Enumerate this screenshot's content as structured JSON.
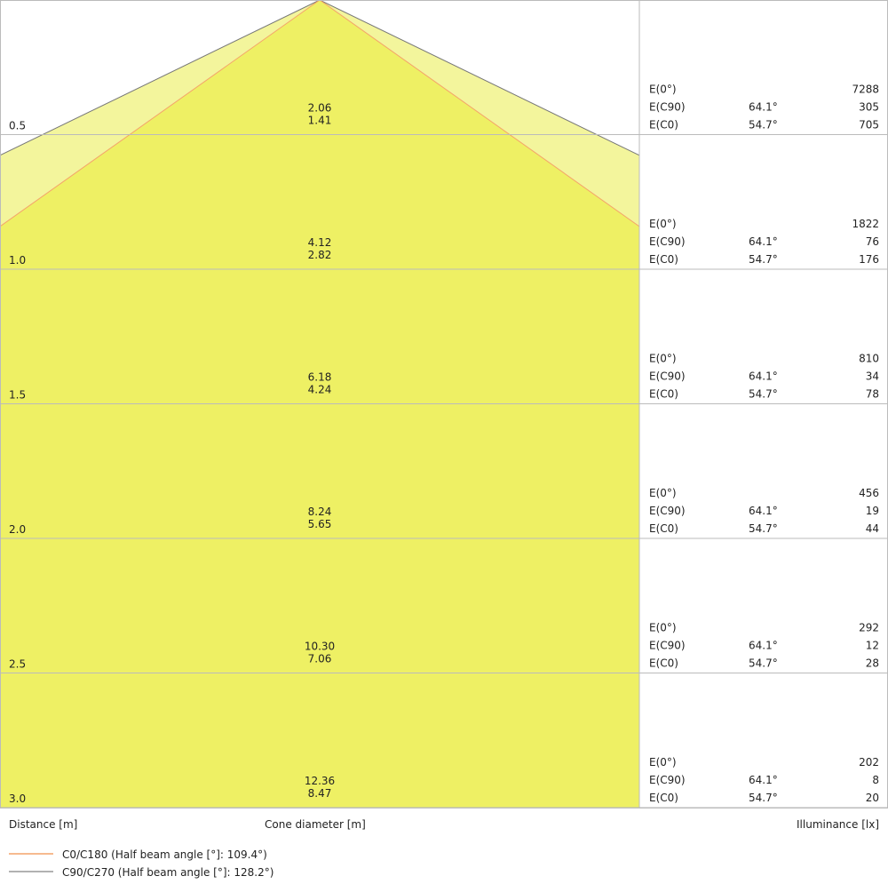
{
  "chart_data": {
    "type": "cone-diagram",
    "colors": {
      "outer_fill": "#f3f59c",
      "inner_fill": "#eef064",
      "c0_line": "#f4a46a",
      "c90_line": "#777777",
      "grid": "#bbbbbb"
    },
    "distance_max": 3.0,
    "rows": [
      {
        "distance": "0.5",
        "cone_c90": "2.06",
        "cone_c0": "1.41",
        "e0": "7288",
        "ec90_angle": "64.1°",
        "ec90": "305",
        "ec0_angle": "54.7°",
        "ec0": "705"
      },
      {
        "distance": "1.0",
        "cone_c90": "4.12",
        "cone_c0": "2.82",
        "e0": "1822",
        "ec90_angle": "64.1°",
        "ec90": "76",
        "ec0_angle": "54.7°",
        "ec0": "176"
      },
      {
        "distance": "1.5",
        "cone_c90": "6.18",
        "cone_c0": "4.24",
        "e0": "810",
        "ec90_angle": "64.1°",
        "ec90": "34",
        "ec0_angle": "54.7°",
        "ec0": "78"
      },
      {
        "distance": "2.0",
        "cone_c90": "8.24",
        "cone_c0": "5.65",
        "e0": "456",
        "ec90_angle": "64.1°",
        "ec90": "19",
        "ec0_angle": "54.7°",
        "ec0": "44"
      },
      {
        "distance": "2.5",
        "cone_c90": "10.30",
        "cone_c0": "7.06",
        "e0": "292",
        "ec90_angle": "64.1°",
        "ec90": "12",
        "ec0_angle": "54.7°",
        "ec0": "28"
      },
      {
        "distance": "3.0",
        "cone_c90": "12.36",
        "cone_c0": "8.47",
        "e0": "202",
        "ec90_angle": "64.1°",
        "ec90": "8",
        "ec0_angle": "54.7°",
        "ec0": "20"
      }
    ],
    "labels": {
      "e0": "E(0°)",
      "ec90": "E(C90)",
      "ec0": "E(C0)"
    },
    "half_angles": {
      "c90": 64.1,
      "c0": 54.7
    },
    "xlabel_distance": "Distance [m]",
    "xlabel_cone": "Cone diameter [m]",
    "xlabel_illuminance": "Illuminance [lx]",
    "legend": [
      {
        "name": "C0/C180 (Half beam angle [°]: 109.4°)",
        "color": "#f4a46a"
      },
      {
        "name": "C90/C270 (Half beam angle [°]: 128.2°)",
        "color": "#999999"
      }
    ]
  }
}
